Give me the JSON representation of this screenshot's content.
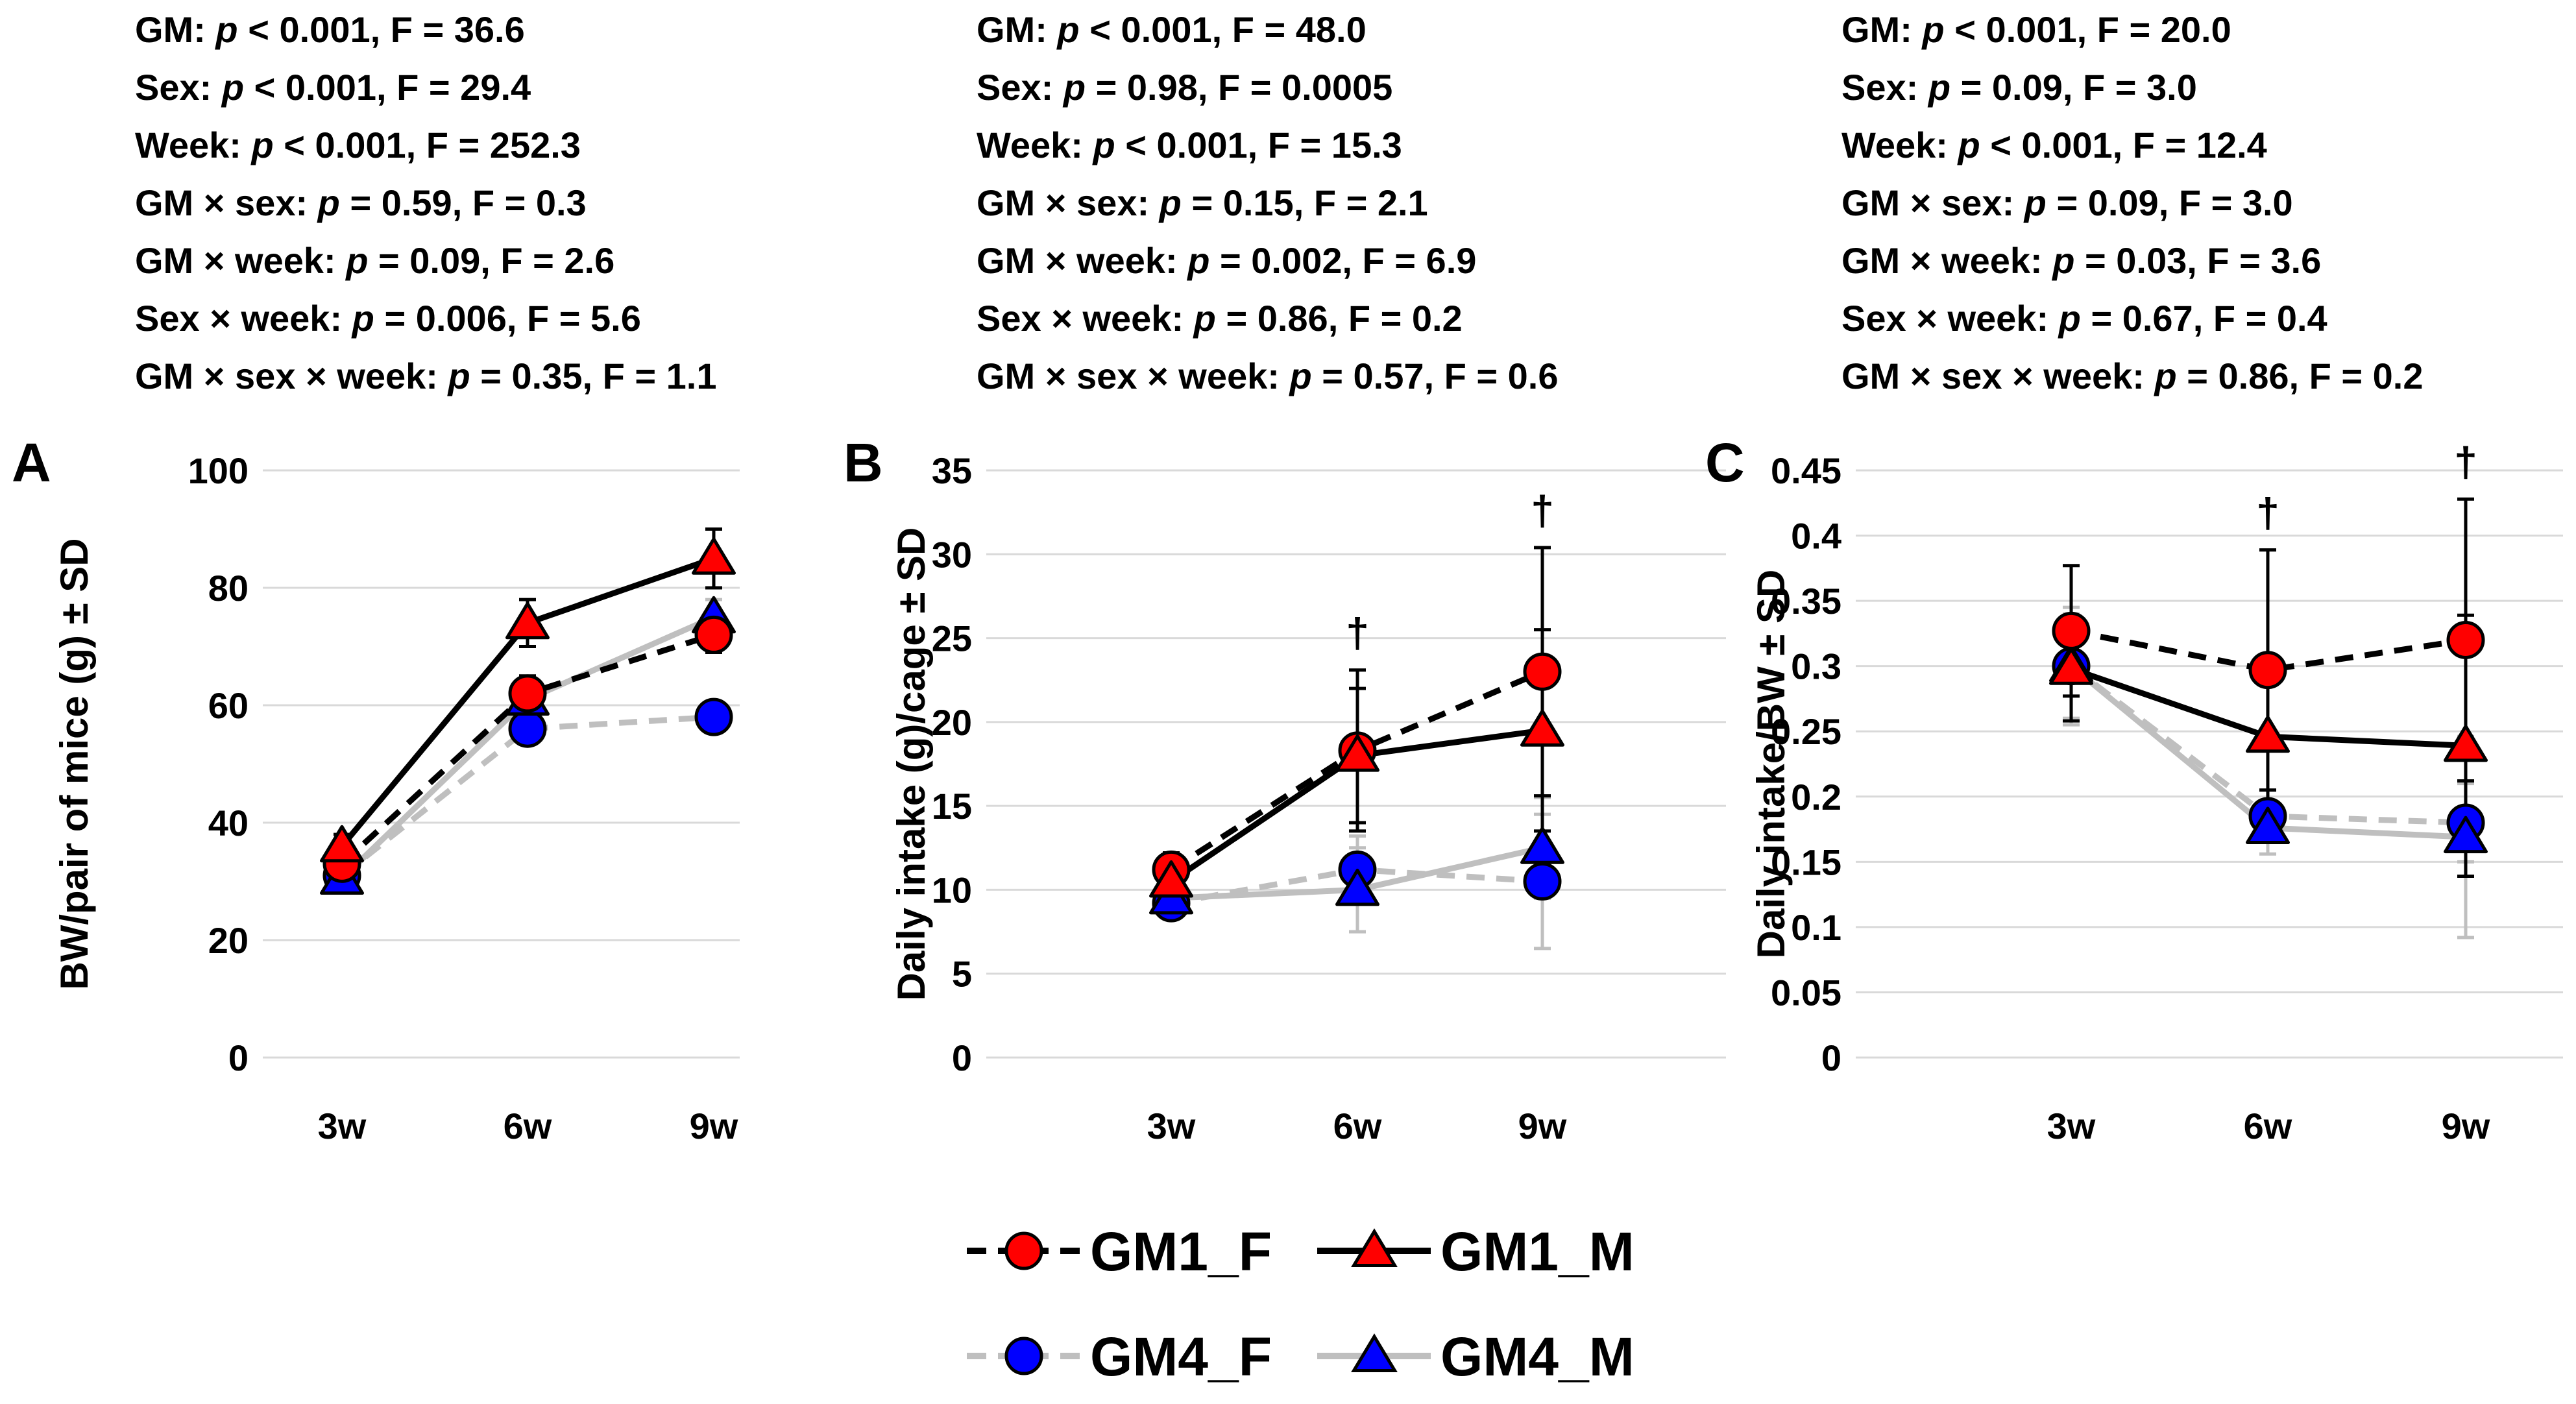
{
  "chart_data": [
    {
      "type": "line",
      "panel_label": "A",
      "ylabel": "BW/pair of mice (g) ± SD",
      "categories": [
        "3w",
        "6w",
        "9w"
      ],
      "ylim": [
        0,
        100
      ],
      "yticks": [
        "0",
        "20",
        "40",
        "60",
        "80",
        "100"
      ],
      "stats": [
        {
          "pre": "GM: ",
          "p": "p",
          "post": " < 0.001, F = 36.6"
        },
        {
          "pre": "Sex: ",
          "p": "p",
          "post": " < 0.001, F = 29.4"
        },
        {
          "pre": "Week: ",
          "p": "p",
          "post": " < 0.001, F = 252.3"
        },
        {
          "pre": "GM × sex: ",
          "p": "p",
          "post": " = 0.59, F = 0.3"
        },
        {
          "pre": "GM × week: ",
          "p": "p",
          "post": " = 0.09, F = 2.6"
        },
        {
          "pre": "Sex × week: ",
          "p": "p",
          "post": " = 0.006, F = 5.6"
        },
        {
          "pre": "GM × sex × week: ",
          "p": "p",
          "post": " = 0.35, F = 1.1"
        }
      ],
      "daggers": [],
      "series": [
        {
          "name": "GM1_F",
          "values": [
            33,
            62,
            72
          ],
          "sd": [
            2,
            3,
            3
          ]
        },
        {
          "name": "GM1_M",
          "values": [
            36,
            74,
            85
          ],
          "sd": [
            2,
            4,
            5
          ]
        },
        {
          "name": "GM4_F",
          "values": [
            31,
            56,
            58
          ],
          "sd": [
            2,
            2,
            1
          ]
        },
        {
          "name": "GM4_M",
          "values": [
            30.5,
            61,
            75
          ],
          "sd": [
            1.5,
            3,
            3
          ]
        }
      ]
    },
    {
      "type": "line",
      "panel_label": "B",
      "ylabel": "Daily intake (g)/cage ± SD",
      "categories": [
        "3w",
        "6w",
        "9w"
      ],
      "ylim": [
        0,
        35
      ],
      "yticks": [
        "0",
        "5",
        "10",
        "15",
        "20",
        "25",
        "30",
        "35"
      ],
      "stats": [
        {
          "pre": "GM: ",
          "p": "p",
          "post": " < 0.001, F = 48.0"
        },
        {
          "pre": "Sex: ",
          "p": "p",
          "post": " = 0.98, F = 0.0005"
        },
        {
          "pre": "Week: ",
          "p": "p",
          "post": " < 0.001, F = 15.3"
        },
        {
          "pre": "GM × sex: ",
          "p": "p",
          "post": " = 0.15, F = 2.1"
        },
        {
          "pre": "GM × week: ",
          "p": "p",
          "post": " = 0.002, F = 6.9"
        },
        {
          "pre": "Sex × week: ",
          "p": "p",
          "post": " = 0.86, F = 0.2"
        },
        {
          "pre": "GM × sex × week: ",
          "p": "p",
          "post": " = 0.57, F = 0.6"
        }
      ],
      "daggers": [
        {
          "category": "6w",
          "symbol": "†"
        },
        {
          "category": "9w",
          "symbol": "†"
        }
      ],
      "series": [
        {
          "name": "GM1_F",
          "values": [
            11.2,
            18.3,
            23
          ],
          "sd": [
            1,
            4.8,
            7.4
          ]
        },
        {
          "name": "GM1_M",
          "values": [
            10.5,
            18,
            19.5
          ],
          "sd": [
            1,
            4,
            6
          ]
        },
        {
          "name": "GM4_F",
          "values": [
            9.2,
            11.2,
            10.5
          ],
          "sd": [
            0.8,
            2,
            4
          ]
        },
        {
          "name": "GM4_M",
          "values": [
            9.5,
            10,
            12.5
          ],
          "sd": [
            0.7,
            2.5,
            3
          ]
        }
      ]
    },
    {
      "type": "line",
      "panel_label": "C",
      "ylabel": "Daily intake/BW ± SD",
      "categories": [
        "3w",
        "6w",
        "9w"
      ],
      "ylim": [
        0,
        0.45
      ],
      "yticks": [
        "0",
        "0.05",
        "0.1",
        "0.15",
        "0.2",
        "0.25",
        "0.3",
        "0.35",
        "0.4",
        "0.45"
      ],
      "stats": [
        {
          "pre": "GM: ",
          "p": "p",
          "post": " < 0.001, F = 20.0"
        },
        {
          "pre": "Sex: ",
          "p": "p",
          "post": " = 0.09, F = 3.0"
        },
        {
          "pre": "Week: ",
          "p": "p",
          "post": " < 0.001, F = 12.4"
        },
        {
          "pre": "GM × sex: ",
          "p": "p",
          "post": " = 0.09, F = 3.0"
        },
        {
          "pre": "GM × week: ",
          "p": "p",
          "post": " = 0.03, F = 3.6"
        },
        {
          "pre": "Sex × week: ",
          "p": "p",
          "post": " = 0.67, F = 0.4"
        },
        {
          "pre": "GM × sex × week: ",
          "p": "p",
          "post": " = 0.86, F = 0.2"
        }
      ],
      "daggers": [
        {
          "category": "6w",
          "symbol": "†"
        },
        {
          "category": "9w",
          "symbol": "†"
        }
      ],
      "series": [
        {
          "name": "GM1_F",
          "values": [
            0.327,
            0.297,
            0.32
          ],
          "sd": [
            0.05,
            0.092,
            0.108
          ]
        },
        {
          "name": "GM1_M",
          "values": [
            0.298,
            0.246,
            0.239
          ],
          "sd": [
            0.04,
            0.06,
            0.1
          ]
        },
        {
          "name": "GM4_F",
          "values": [
            0.3,
            0.185,
            0.18
          ],
          "sd": [
            0.04,
            0.02,
            0.03
          ]
        },
        {
          "name": "GM4_M",
          "values": [
            0.3,
            0.176,
            0.169
          ],
          "sd": [
            0.045,
            0.02,
            0.077
          ]
        }
      ]
    }
  ],
  "series_styles": {
    "GM1_F": {
      "line_color": "#000000",
      "dashed": true,
      "marker": "circle",
      "marker_color": "#ff0000"
    },
    "GM1_M": {
      "line_color": "#000000",
      "dashed": false,
      "marker": "triangle",
      "marker_color": "#ff0000"
    },
    "GM4_F": {
      "line_color": "#bfbfbf",
      "dashed": true,
      "marker": "circle",
      "marker_color": "#0000ff"
    },
    "GM4_M": {
      "line_color": "#bfbfbf",
      "dashed": false,
      "marker": "triangle",
      "marker_color": "#0000ff"
    }
  },
  "legend": {
    "placement": "bottom-center",
    "items": [
      {
        "name": "GM1_F",
        "label": "GM1_F"
      },
      {
        "name": "GM1_M",
        "label": "GM1_M"
      },
      {
        "name": "GM4_F",
        "label": "GM4_F"
      },
      {
        "name": "GM4_M",
        "label": "GM4_M"
      }
    ]
  }
}
